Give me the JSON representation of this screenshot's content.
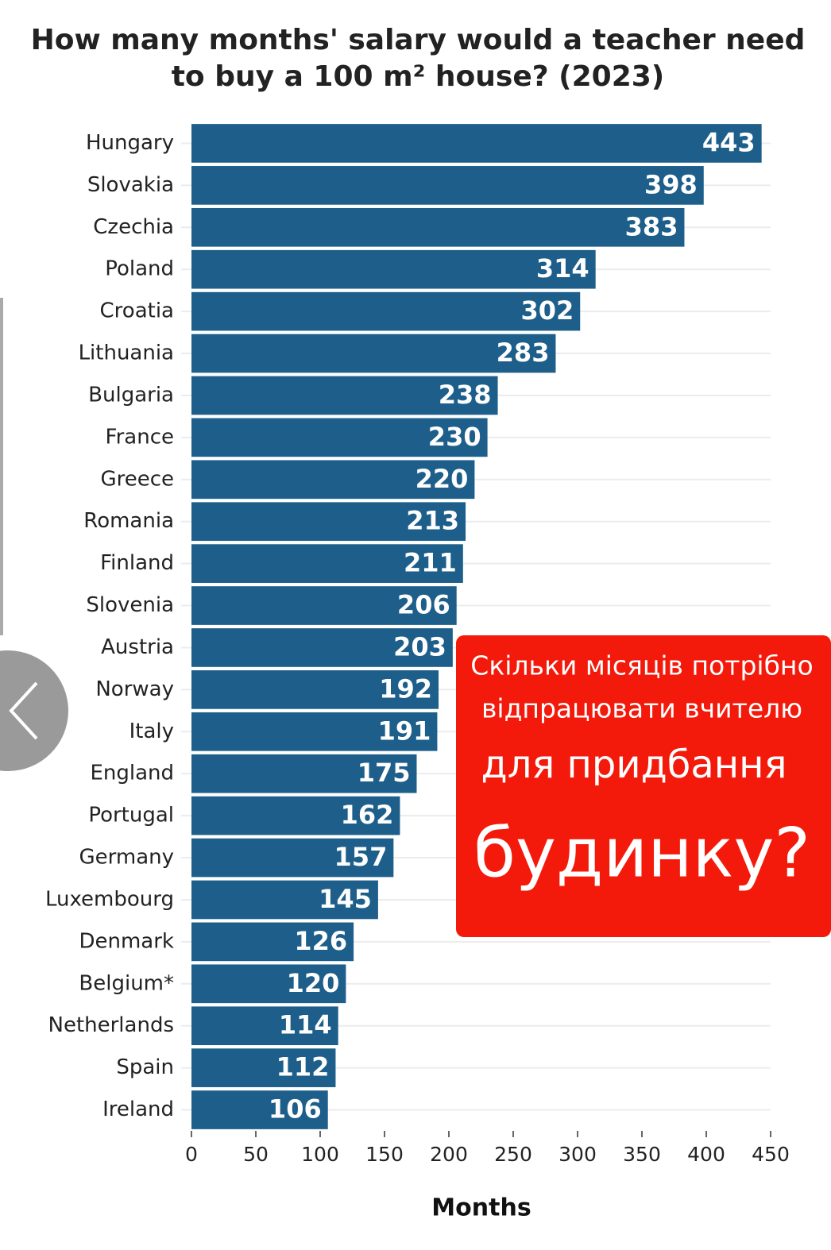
{
  "chart_data": {
    "type": "barh",
    "title": [
      "How many months' salary would a teacher need",
      "to buy a 100 m² house? (2023)"
    ],
    "x_label": "Months",
    "categories": [
      "Hungary",
      "Slovakia",
      "Czechia",
      "Poland",
      "Croatia",
      "Lithuania",
      "Bulgaria",
      "France",
      "Greece",
      "Romania",
      "Finland",
      "Slovenia",
      "Austria",
      "Norway",
      "Italy",
      "England",
      "Portugal",
      "Germany",
      "Luxembourg",
      "Denmark",
      "Belgium*",
      "Netherlands",
      "Spain",
      "Ireland"
    ],
    "values": [
      443,
      398,
      383,
      314,
      302,
      283,
      238,
      230,
      220,
      213,
      211,
      206,
      203,
      192,
      191,
      175,
      162,
      157,
      145,
      126,
      120,
      114,
      112,
      106
    ],
    "color": "#1d5f8a",
    "xlim": [
      0,
      450
    ],
    "xticks": [
      0,
      50,
      100,
      150,
      200,
      250,
      300,
      350,
      400,
      450
    ],
    "value_labels_shown": true,
    "annotation": [
      "Скільки місяців потрібно",
      "відпрацювати вчителю",
      "для придбання",
      "будинку?"
    ]
  }
}
